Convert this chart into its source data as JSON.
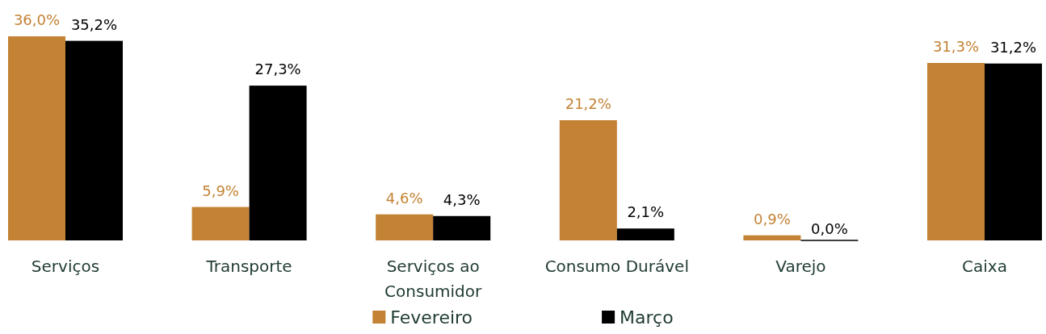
{
  "chart_data": {
    "type": "bar",
    "categories": [
      "Serviços",
      "Transporte",
      "Serviços ao Consumidor",
      "Consumo Durável",
      "Varejo",
      "Caixa"
    ],
    "series": [
      {
        "name": "Fevereiro",
        "color": "#c38234",
        "values": [
          36.0,
          5.9,
          4.6,
          21.2,
          0.9,
          31.3
        ],
        "value_labels": [
          "36,0%",
          "5,9%",
          "4,6%",
          "21,2%",
          "0,9%",
          "31,3%"
        ]
      },
      {
        "name": "Março",
        "color": "#000000",
        "values": [
          35.2,
          27.3,
          4.3,
          2.1,
          0.0,
          31.2
        ],
        "value_labels": [
          "35,2%",
          "27,3%",
          "4,3%",
          "2,1%",
          "0,0%",
          "31,2%"
        ]
      }
    ],
    "legend": "bottom"
  }
}
